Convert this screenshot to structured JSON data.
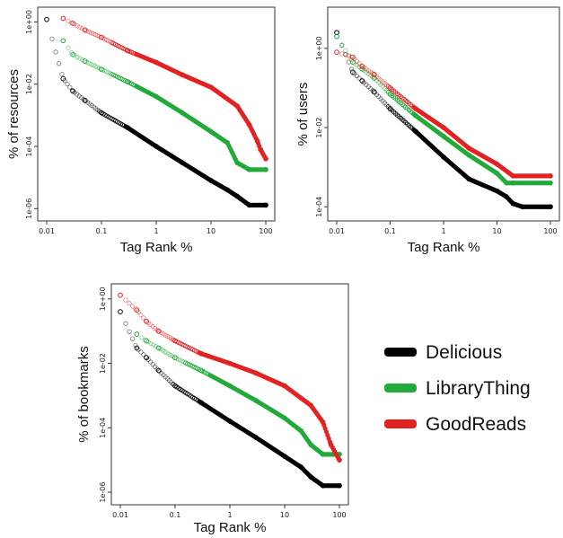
{
  "colors": {
    "Delicious": "#000000",
    "LibraryThing": "#22aa3a",
    "GoodReads": "#e32222"
  },
  "legend": {
    "placement": "bottom-right",
    "items": [
      {
        "label": "Delicious",
        "color": "#000000"
      },
      {
        "label": "LibraryThing",
        "color": "#22aa3a"
      },
      {
        "label": "GoodReads",
        "color": "#e32222"
      }
    ]
  },
  "chart_data": [
    {
      "type": "scatter",
      "xlabel": "Tag Rank %",
      "ylabel": "% of resources",
      "xscale": "log",
      "yscale": "log",
      "xlim": [
        0.01,
        100
      ],
      "ylim": [
        6e-07,
        2
      ],
      "xticks": [
        "0.01",
        "0.1",
        "1",
        "10",
        "100"
      ],
      "yticks": [
        "1e-06",
        "1e-04",
        "1e-02",
        "1e+00"
      ],
      "series": [
        {
          "name": "Delicious",
          "x": [
            0.01,
            0.02,
            0.03,
            0.05,
            0.1,
            0.3,
            1,
            3,
            10,
            20,
            30,
            50,
            100
          ],
          "y": [
            1.2,
            0.015,
            0.006,
            0.003,
            0.0012,
            0.0004,
            0.0001,
            3e-05,
            8e-06,
            4e-06,
            2.5e-06,
            1.3e-06,
            1.3e-06
          ]
        },
        {
          "name": "LibraryThing",
          "x": [
            0.02,
            0.03,
            0.05,
            0.1,
            0.3,
            1,
            3,
            10,
            20,
            30,
            50,
            100
          ],
          "y": [
            0.25,
            0.09,
            0.055,
            0.03,
            0.012,
            0.004,
            0.0012,
            0.0003,
            0.00013,
            3e-05,
            1.8e-05,
            1.8e-05
          ]
        },
        {
          "name": "GoodReads",
          "x": [
            0.02,
            0.03,
            0.05,
            0.1,
            0.3,
            1,
            3,
            10,
            30,
            50,
            70,
            80,
            100
          ],
          "y": [
            1.3,
            0.9,
            0.55,
            0.32,
            0.12,
            0.05,
            0.02,
            0.008,
            0.002,
            0.0005,
            0.00015,
            8e-05,
            4e-05
          ]
        }
      ]
    },
    {
      "type": "scatter",
      "xlabel": "Tag Rank %",
      "ylabel": "% of users",
      "xscale": "log",
      "yscale": "log",
      "xlim": [
        0.01,
        100
      ],
      "ylim": [
        6e-05,
        8
      ],
      "xticks": [
        "0.01",
        "0.1",
        "1",
        "10",
        "100"
      ],
      "yticks": [
        "1e-04",
        "1e-02",
        "1e+00"
      ],
      "series": [
        {
          "name": "Delicious",
          "x": [
            0.01,
            0.02,
            0.03,
            0.05,
            0.1,
            0.3,
            1,
            3,
            10,
            15,
            20,
            30,
            100
          ],
          "y": [
            2.5,
            0.25,
            0.15,
            0.08,
            0.03,
            0.008,
            0.0018,
            0.0005,
            0.00025,
            0.00018,
            0.00012,
            0.0001,
            0.0001
          ]
        },
        {
          "name": "LibraryThing",
          "x": [
            0.01,
            0.02,
            0.03,
            0.05,
            0.1,
            0.3,
            1,
            3,
            10,
            15,
            20,
            100
          ],
          "y": [
            2.0,
            0.45,
            0.3,
            0.18,
            0.07,
            0.02,
            0.006,
            0.002,
            0.0007,
            0.0004,
            0.0004,
            0.0004
          ]
        },
        {
          "name": "GoodReads",
          "x": [
            0.01,
            0.02,
            0.03,
            0.05,
            0.1,
            0.3,
            1,
            3,
            10,
            20,
            100
          ],
          "y": [
            0.8,
            0.6,
            0.35,
            0.22,
            0.1,
            0.03,
            0.01,
            0.003,
            0.0012,
            0.0006,
            0.0006
          ]
        }
      ]
    },
    {
      "type": "scatter",
      "xlabel": "Tag Rank %",
      "ylabel": "% of bookmarks",
      "xscale": "log",
      "yscale": "log",
      "xlim": [
        0.01,
        100
      ],
      "ylim": [
        6e-07,
        2
      ],
      "xticks": [
        "0.01",
        "0.1",
        "1",
        "10",
        "100"
      ],
      "yticks": [
        "1e-06",
        "1e-04",
        "1e-02",
        "1e+00"
      ],
      "series": [
        {
          "name": "Delicious",
          "x": [
            0.01,
            0.02,
            0.03,
            0.05,
            0.1,
            0.3,
            1,
            3,
            10,
            20,
            30,
            50,
            100
          ],
          "y": [
            0.4,
            0.03,
            0.015,
            0.006,
            0.002,
            0.0006,
            0.00016,
            5e-05,
            1.3e-05,
            6e-06,
            3e-06,
            1.6e-06,
            1.6e-06
          ]
        },
        {
          "name": "LibraryThing",
          "x": [
            0.02,
            0.03,
            0.05,
            0.1,
            0.3,
            1,
            3,
            10,
            20,
            30,
            50,
            100
          ],
          "y": [
            0.08,
            0.05,
            0.03,
            0.015,
            0.006,
            0.002,
            0.0007,
            0.0002,
            8e-05,
            3e-05,
            1.5e-05,
            1.5e-05
          ]
        },
        {
          "name": "GoodReads",
          "x": [
            0.01,
            0.02,
            0.03,
            0.05,
            0.1,
            0.3,
            1,
            3,
            10,
            30,
            50,
            70,
            100
          ],
          "y": [
            1.3,
            0.45,
            0.2,
            0.1,
            0.05,
            0.02,
            0.01,
            0.005,
            0.002,
            0.0005,
            0.00015,
            3e-05,
            1e-05
          ]
        }
      ]
    }
  ]
}
